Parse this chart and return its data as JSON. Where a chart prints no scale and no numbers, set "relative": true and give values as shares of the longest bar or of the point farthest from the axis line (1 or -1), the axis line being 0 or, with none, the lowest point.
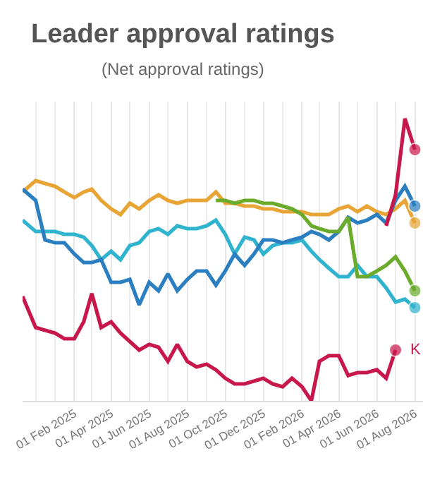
{
  "chart_data": {
    "type": "line",
    "title": "Leader approval ratings",
    "subtitle": "(Net approval ratings)",
    "relative": true,
    "grid": "x",
    "line_style": "solid",
    "x": [
      "2024-11-10",
      "2024-12-01",
      "2024-12-16",
      "2025-01-01",
      "2025-01-16",
      "2025-02-01",
      "2025-02-16",
      "2025-03-01",
      "2025-03-16",
      "2025-04-01",
      "2025-04-16",
      "2025-05-01",
      "2025-05-16",
      "2025-06-01",
      "2025-06-16",
      "2025-07-01",
      "2025-07-16",
      "2025-08-01",
      "2025-08-16",
      "2025-09-01",
      "2025-09-16",
      "2025-10-01",
      "2025-10-16",
      "2025-11-01",
      "2025-11-16",
      "2025-12-01",
      "2025-12-16",
      "2026-01-01",
      "2026-01-16",
      "2026-02-01",
      "2026-02-16",
      "2026-03-01",
      "2026-03-16",
      "2026-04-01",
      "2026-04-16",
      "2026-05-01",
      "2026-05-16",
      "2026-06-01",
      "2026-06-16",
      "2026-07-01",
      "2026-07-16",
      "2026-08-01"
    ],
    "xlim": [
      "2024-11-10",
      "2026-08-14"
    ],
    "xticks": [
      {
        "value": "2025-02-01",
        "label": "01 Feb 2025"
      },
      {
        "value": "2025-04-01",
        "label": "01 Apr 2025"
      },
      {
        "value": "2025-06-01",
        "label": "01 Jun 2025"
      },
      {
        "value": "2025-08-01",
        "label": "01 Aug 2025"
      },
      {
        "value": "2025-10-01",
        "label": "01 Oct 2025"
      },
      {
        "value": "2025-12-01",
        "label": "01 Dec 2025"
      },
      {
        "value": "2026-02-01",
        "label": "01 Feb 2026"
      },
      {
        "value": "2026-04-01",
        "label": "01 Apr 2026"
      },
      {
        "value": "2026-06-01",
        "label": "01 Jun 2026"
      },
      {
        "value": "2026-08-01",
        "label": "01 Aug 2026"
      }
    ],
    "series": [
      {
        "color": "#e8a435",
        "values": [
          0.74,
          0.78,
          0.77,
          0.76,
          0.74,
          0.72,
          0.74,
          0.75,
          0.71,
          0.68,
          0.66,
          0.7,
          0.68,
          0.71,
          0.73,
          0.71,
          0.7,
          0.71,
          0.71,
          0.71,
          0.74,
          0.7,
          0.7,
          0.69,
          0.69,
          0.68,
          0.68,
          0.67,
          0.67,
          0.67,
          0.66,
          0.66,
          0.66,
          0.68,
          0.69,
          0.67,
          0.69,
          0.67,
          0.66,
          0.68,
          0.71,
          0.63
        ]
      },
      {
        "color": "#2fb3cf",
        "values": [
          0.64,
          0.6,
          0.6,
          0.6,
          0.59,
          0.59,
          0.58,
          0.55,
          0.5,
          0.53,
          0.5,
          0.55,
          0.56,
          0.6,
          0.61,
          0.59,
          0.62,
          0.61,
          0.61,
          0.62,
          0.64,
          0.59,
          0.52,
          0.58,
          0.57,
          0.52,
          0.55,
          0.56,
          0.56,
          0.57,
          0.53,
          0.5,
          0.47,
          0.44,
          0.44,
          0.48,
          0.44,
          0.44,
          0.4,
          0.35,
          0.36,
          0.33
        ]
      },
      {
        "color": "#2b7fc1",
        "values": [
          0.75,
          0.71,
          0.57,
          0.56,
          0.56,
          0.52,
          0.49,
          0.49,
          0.5,
          0.42,
          0.42,
          0.43,
          0.34,
          0.42,
          0.39,
          0.45,
          0.39,
          0.43,
          0.46,
          0.46,
          0.41,
          0.46,
          0.52,
          0.48,
          0.52,
          0.57,
          0.57,
          0.56,
          0.57,
          0.58,
          0.6,
          0.59,
          0.57,
          0.6,
          0.65,
          0.63,
          0.64,
          0.66,
          0.63,
          0.71,
          0.76,
          0.69
        ]
      },
      {
        "color": "#6aab2b",
        "values": [
          null,
          null,
          null,
          null,
          null,
          null,
          null,
          null,
          null,
          null,
          null,
          null,
          null,
          null,
          null,
          null,
          null,
          null,
          null,
          null,
          0.71,
          0.71,
          0.7,
          0.71,
          0.71,
          0.7,
          0.7,
          0.69,
          0.68,
          0.66,
          0.62,
          0.61,
          0.6,
          0.6,
          0.65,
          0.44,
          0.44,
          0.46,
          0.48,
          0.51,
          0.46,
          0.39
        ]
      },
      {
        "color": "#c8174b",
        "values": [
          0.37,
          0.26,
          0.25,
          0.24,
          0.22,
          0.22,
          0.28,
          0.38,
          0.26,
          0.28,
          0.24,
          0.21,
          0.18,
          0.2,
          0.19,
          0.14,
          0.2,
          0.14,
          0.12,
          0.13,
          0.11,
          0.08,
          0.06,
          0.06,
          0.07,
          0.08,
          0.06,
          0.05,
          0.08,
          0.05,
          0,
          0.14,
          0.16,
          0.16,
          0.09,
          0.1,
          0.1,
          0.11,
          0.08,
          0.18,
          null,
          null
        ]
      },
      {
        "color": "#c8174b",
        "values": [
          null,
          null,
          null,
          null,
          null,
          null,
          null,
          null,
          null,
          null,
          null,
          null,
          null,
          null,
          null,
          null,
          null,
          null,
          null,
          null,
          null,
          null,
          null,
          null,
          null,
          null,
          null,
          null,
          null,
          null,
          null,
          null,
          null,
          null,
          null,
          null,
          null,
          null,
          0.62,
          0.73,
          1,
          0.89
        ]
      }
    ],
    "annotations": [
      {
        "text": "K",
        "x": "2026-07-01",
        "y": 0.18
      }
    ]
  }
}
